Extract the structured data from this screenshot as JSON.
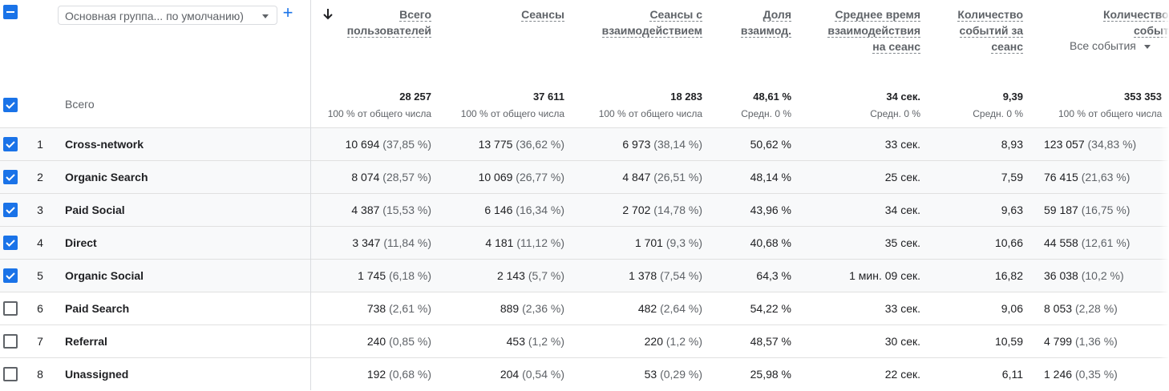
{
  "toolbar": {
    "dimension_select": "Основная группа... по умолчанию)",
    "add_label": "+"
  },
  "columns": [
    {
      "key": "users",
      "lines": [
        "Всего",
        "пользователей"
      ]
    },
    {
      "key": "sessions",
      "lines": [
        "Сеансы"
      ]
    },
    {
      "key": "engaged",
      "lines": [
        "Сеансы с",
        "взаимодействием"
      ]
    },
    {
      "key": "rate",
      "lines": [
        "Доля",
        "взаимод."
      ]
    },
    {
      "key": "avgtime",
      "lines": [
        "Среднее время",
        "взаимодействия",
        "на сеанс"
      ]
    },
    {
      "key": "events_per",
      "lines": [
        "Количество",
        "событий за",
        "сеанс"
      ]
    },
    {
      "key": "events",
      "lines": [
        "Количество",
        "событий"
      ]
    }
  ],
  "events_filter": "Все события",
  "totals": {
    "label": "Всего",
    "values": [
      "28 257",
      "37 611",
      "18 283",
      "48,61 %",
      "34 сек.",
      "9,39",
      "353 353"
    ],
    "subs": [
      "100 % от общего числа",
      "100 % от общего числа",
      "100 % от общего числа",
      "Средн. 0 %",
      "Средн. 0 %",
      "Средн. 0 %",
      "100 % от общего числа"
    ]
  },
  "rows": [
    {
      "num": "1",
      "name": "Cross-network",
      "checked": true,
      "cells": [
        [
          "10 694",
          "(37,85 %)"
        ],
        [
          "13 775",
          "(36,62 %)"
        ],
        [
          "6 973",
          "(38,14 %)"
        ],
        [
          "50,62 %",
          ""
        ],
        [
          "33 сек.",
          ""
        ],
        [
          "8,93",
          ""
        ],
        [
          "123 057",
          "(34,83 %)"
        ]
      ]
    },
    {
      "num": "2",
      "name": "Organic Search",
      "checked": true,
      "cells": [
        [
          "8 074",
          "(28,57 %)"
        ],
        [
          "10 069",
          "(26,77 %)"
        ],
        [
          "4 847",
          "(26,51 %)"
        ],
        [
          "48,14 %",
          ""
        ],
        [
          "25 сек.",
          ""
        ],
        [
          "7,59",
          ""
        ],
        [
          "76 415",
          "(21,63 %)"
        ]
      ]
    },
    {
      "num": "3",
      "name": "Paid Social",
      "checked": true,
      "cells": [
        [
          "4 387",
          "(15,53 %)"
        ],
        [
          "6 146",
          "(16,34 %)"
        ],
        [
          "2 702",
          "(14,78 %)"
        ],
        [
          "43,96 %",
          ""
        ],
        [
          "34 сек.",
          ""
        ],
        [
          "9,63",
          ""
        ],
        [
          "59 187",
          "(16,75 %)"
        ]
      ]
    },
    {
      "num": "4",
      "name": "Direct",
      "checked": true,
      "cells": [
        [
          "3 347",
          "(11,84 %)"
        ],
        [
          "4 181",
          "(11,12 %)"
        ],
        [
          "1 701",
          "(9,3 %)"
        ],
        [
          "40,68 %",
          ""
        ],
        [
          "35 сек.",
          ""
        ],
        [
          "10,66",
          ""
        ],
        [
          "44 558",
          "(12,61 %)"
        ]
      ]
    },
    {
      "num": "5",
      "name": "Organic Social",
      "checked": true,
      "cells": [
        [
          "1 745",
          "(6,18 %)"
        ],
        [
          "2 143",
          "(5,7 %)"
        ],
        [
          "1 378",
          "(7,54 %)"
        ],
        [
          "64,3 %",
          ""
        ],
        [
          "1 мин. 09 сек.",
          ""
        ],
        [
          "16,82",
          ""
        ],
        [
          "36 038",
          "(10,2 %)"
        ]
      ]
    },
    {
      "num": "6",
      "name": "Paid Search",
      "checked": false,
      "cells": [
        [
          "738",
          "(2,61 %)"
        ],
        [
          "889",
          "(2,36 %)"
        ],
        [
          "482",
          "(2,64 %)"
        ],
        [
          "54,22 %",
          ""
        ],
        [
          "33 сек.",
          ""
        ],
        [
          "9,06",
          ""
        ],
        [
          "8 053",
          "(2,28 %)"
        ]
      ]
    },
    {
      "num": "7",
      "name": "Referral",
      "checked": false,
      "cells": [
        [
          "240",
          "(0,85 %)"
        ],
        [
          "453",
          "(1,2 %)"
        ],
        [
          "220",
          "(1,2 %)"
        ],
        [
          "48,57 %",
          ""
        ],
        [
          "30 сек.",
          ""
        ],
        [
          "10,59",
          ""
        ],
        [
          "4 799",
          "(1,36 %)"
        ]
      ]
    },
    {
      "num": "8",
      "name": "Unassigned",
      "checked": false,
      "cells": [
        [
          "192",
          "(0,68 %)"
        ],
        [
          "204",
          "(0,54 %)"
        ],
        [
          "53",
          "(0,29 %)"
        ],
        [
          "25,98 %",
          ""
        ],
        [
          "22 сек.",
          ""
        ],
        [
          "6,11",
          ""
        ],
        [
          "1 246",
          "(0,35 %)"
        ]
      ]
    }
  ]
}
